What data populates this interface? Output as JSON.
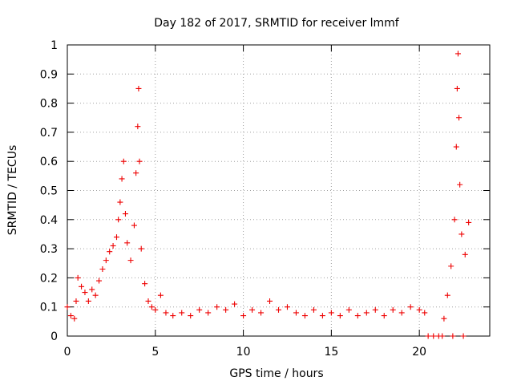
{
  "chart_data": {
    "type": "scatter",
    "title": "Day 182 of 2017, SRMTID for receiver lmmf",
    "xlabel": "GPS time / hours",
    "ylabel": "SRMTID / TECUs",
    "xlim": [
      0,
      24
    ],
    "ylim": [
      0,
      1
    ],
    "xticks": [
      0,
      5,
      10,
      15,
      20
    ],
    "xtick_labels": [
      "0",
      "5",
      "10",
      "15",
      "20"
    ],
    "yticks": [
      0,
      0.1,
      0.2,
      0.3,
      0.4,
      0.5,
      0.6,
      0.7,
      0.8,
      0.9,
      1
    ],
    "ytick_labels": [
      "0",
      "0.1",
      "0.2",
      "0.3",
      "0.4",
      "0.5",
      "0.6",
      "0.7",
      "0.8",
      "0.9",
      "1"
    ],
    "grid": true,
    "marker": "+",
    "color": "#ee0000",
    "series": [
      {
        "name": "SRMTID",
        "points": [
          [
            0.0,
            0.1
          ],
          [
            0.2,
            0.07
          ],
          [
            0.4,
            0.06
          ],
          [
            0.5,
            0.12
          ],
          [
            0.6,
            0.2
          ],
          [
            0.8,
            0.17
          ],
          [
            1.0,
            0.15
          ],
          [
            1.2,
            0.12
          ],
          [
            1.4,
            0.16
          ],
          [
            1.6,
            0.14
          ],
          [
            1.8,
            0.19
          ],
          [
            2.0,
            0.23
          ],
          [
            2.2,
            0.26
          ],
          [
            2.4,
            0.29
          ],
          [
            2.6,
            0.31
          ],
          [
            2.8,
            0.34
          ],
          [
            2.9,
            0.4
          ],
          [
            3.0,
            0.46
          ],
          [
            3.1,
            0.54
          ],
          [
            3.2,
            0.6
          ],
          [
            3.3,
            0.42
          ],
          [
            3.4,
            0.32
          ],
          [
            3.6,
            0.26
          ],
          [
            3.8,
            0.38
          ],
          [
            3.9,
            0.56
          ],
          [
            4.0,
            0.72
          ],
          [
            4.05,
            0.85
          ],
          [
            4.1,
            0.6
          ],
          [
            4.2,
            0.3
          ],
          [
            4.4,
            0.18
          ],
          [
            4.6,
            0.12
          ],
          [
            4.8,
            0.1
          ],
          [
            5.0,
            0.09
          ],
          [
            5.3,
            0.14
          ],
          [
            5.6,
            0.08
          ],
          [
            6.0,
            0.07
          ],
          [
            6.5,
            0.08
          ],
          [
            7.0,
            0.07
          ],
          [
            7.5,
            0.09
          ],
          [
            8.0,
            0.08
          ],
          [
            8.5,
            0.1
          ],
          [
            9.0,
            0.09
          ],
          [
            9.5,
            0.11
          ],
          [
            10.0,
            0.07
          ],
          [
            10.5,
            0.09
          ],
          [
            11.0,
            0.08
          ],
          [
            11.5,
            0.12
          ],
          [
            12.0,
            0.09
          ],
          [
            12.5,
            0.1
          ],
          [
            13.0,
            0.08
          ],
          [
            13.5,
            0.07
          ],
          [
            14.0,
            0.09
          ],
          [
            14.5,
            0.07
          ],
          [
            15.0,
            0.08
          ],
          [
            15.5,
            0.07
          ],
          [
            16.0,
            0.09
          ],
          [
            16.5,
            0.07
          ],
          [
            17.0,
            0.08
          ],
          [
            17.5,
            0.09
          ],
          [
            18.0,
            0.07
          ],
          [
            18.5,
            0.09
          ],
          [
            19.0,
            0.08
          ],
          [
            19.5,
            0.1
          ],
          [
            20.0,
            0.09
          ],
          [
            20.3,
            0.08
          ],
          [
            20.5,
            0.0
          ],
          [
            20.8,
            0.0
          ],
          [
            21.1,
            0.0
          ],
          [
            21.4,
            0.06
          ],
          [
            21.6,
            0.14
          ],
          [
            21.8,
            0.24
          ],
          [
            22.0,
            0.4
          ],
          [
            22.1,
            0.65
          ],
          [
            22.15,
            0.85
          ],
          [
            22.2,
            0.97
          ],
          [
            22.25,
            0.75
          ],
          [
            22.3,
            0.52
          ],
          [
            22.4,
            0.35
          ],
          [
            22.6,
            0.28
          ],
          [
            22.8,
            0.39
          ],
          [
            21.3,
            0.0
          ],
          [
            21.9,
            0.0
          ],
          [
            22.5,
            0.0
          ]
        ]
      }
    ]
  }
}
